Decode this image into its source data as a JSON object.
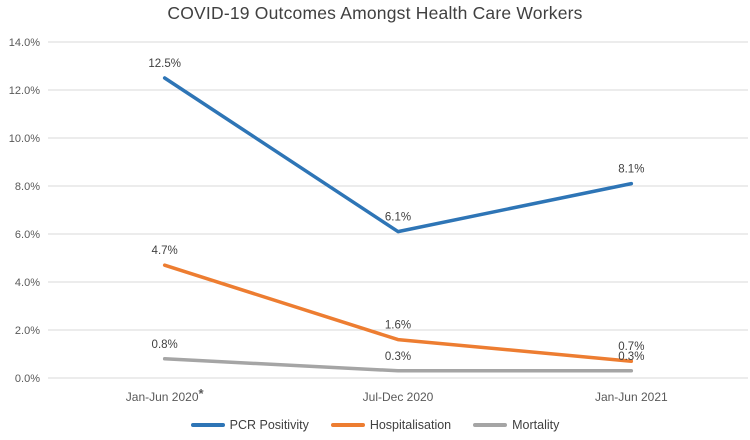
{
  "chart_data": {
    "type": "line",
    "title": "COVID-19 Outcomes Amongst Health Care Workers",
    "categories": [
      {
        "label": "Jan-Jun 2020",
        "suffix": "*"
      },
      {
        "label": "Jul-Dec 2020",
        "suffix": ""
      },
      {
        "label": "Jan-Jun 2021",
        "suffix": ""
      }
    ],
    "series": [
      {
        "name": "PCR Positivity",
        "color": "#2E75B6",
        "values": [
          12.5,
          6.1,
          8.1
        ],
        "labels": [
          "12.5%",
          "6.1%",
          "8.1%"
        ]
      },
      {
        "name": "Hospitalisation",
        "color": "#ED7D31",
        "values": [
          4.7,
          1.6,
          0.7
        ],
        "labels": [
          "4.7%",
          "1.6%",
          "0.7%"
        ]
      },
      {
        "name": "Mortality",
        "color": "#A5A5A5",
        "values": [
          0.8,
          0.3,
          0.3
        ],
        "labels": [
          "0.8%",
          "0.3%",
          "0.3%"
        ]
      }
    ],
    "y_axis": {
      "min": 0,
      "max": 14,
      "step": 2,
      "tick_labels": [
        "0.0%",
        "2.0%",
        "4.0%",
        "6.0%",
        "8.0%",
        "10.0%",
        "12.0%",
        "14.0%"
      ]
    },
    "grid": true,
    "legend_position": "bottom",
    "colors": {
      "gridline": "#D9D9D9",
      "tick_text": "#595959",
      "x_tick_text": "#595959",
      "data_label_text": "#404040",
      "title_text": "#404040"
    }
  }
}
